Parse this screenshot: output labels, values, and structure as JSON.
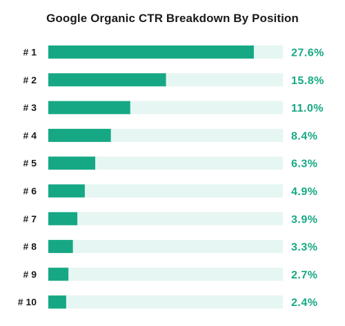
{
  "colors": {
    "bar": "#16a884",
    "track": "#e6f6f2",
    "value_text": "#16a884",
    "title_text": "#1a1a1a"
  },
  "chart_data": {
    "type": "bar",
    "orientation": "horizontal",
    "title": "Google Organic CTR Breakdown By Position",
    "categories": [
      "# 1",
      "# 2",
      "# 3",
      "# 4",
      "# 5",
      "# 6",
      "# 7",
      "# 8",
      "# 9",
      "# 10"
    ],
    "values": [
      27.6,
      15.8,
      11.0,
      8.4,
      6.3,
      4.9,
      3.9,
      3.3,
      2.7,
      2.4
    ],
    "value_labels": [
      "27.6%",
      "15.8%",
      "11.0%",
      "8.4%",
      "6.3%",
      "4.9%",
      "3.9%",
      "3.3%",
      "2.7%",
      "2.4%"
    ],
    "xlim": [
      0,
      31.5
    ],
    "grid": false,
    "legend": false
  }
}
